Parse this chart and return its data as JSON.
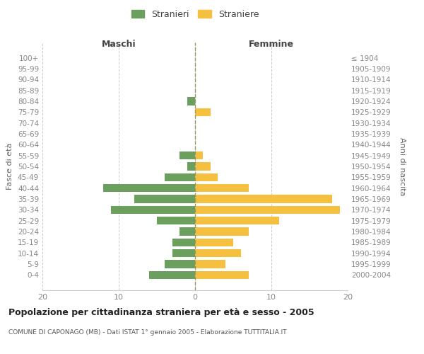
{
  "age_groups": [
    "100+",
    "95-99",
    "90-94",
    "85-89",
    "80-84",
    "75-79",
    "70-74",
    "65-69",
    "60-64",
    "55-59",
    "50-54",
    "45-49",
    "40-44",
    "35-39",
    "30-34",
    "25-29",
    "20-24",
    "15-19",
    "10-14",
    "5-9",
    "0-4"
  ],
  "birth_years": [
    "≤ 1904",
    "1905-1909",
    "1910-1914",
    "1915-1919",
    "1920-1924",
    "1925-1929",
    "1930-1934",
    "1935-1939",
    "1940-1944",
    "1945-1949",
    "1950-1954",
    "1955-1959",
    "1960-1964",
    "1965-1969",
    "1970-1974",
    "1975-1979",
    "1980-1984",
    "1985-1989",
    "1990-1994",
    "1995-1999",
    "2000-2004"
  ],
  "maschi": [
    0,
    0,
    0,
    0,
    1,
    0,
    0,
    0,
    0,
    2,
    1,
    4,
    12,
    8,
    11,
    5,
    2,
    3,
    3,
    4,
    6
  ],
  "femmine": [
    0,
    0,
    0,
    0,
    0,
    2,
    0,
    0,
    0,
    1,
    2,
    3,
    7,
    18,
    19,
    11,
    7,
    5,
    6,
    4,
    7
  ],
  "male_color": "#6a9f5e",
  "female_color": "#f5c040",
  "bar_height": 0.75,
  "xlim": 20,
  "title": "Popolazione per cittadinanza straniera per età e sesso - 2005",
  "subtitle": "COMUNE DI CAPONAGO (MB) - Dati ISTAT 1° gennaio 2005 - Elaborazione TUTTITALIA.IT",
  "ylabel_left": "Fasce di età",
  "ylabel_right": "Anni di nascita",
  "legend_male": "Stranieri",
  "legend_female": "Straniere",
  "maschi_label": "Maschi",
  "femmine_label": "Femmine",
  "background_color": "#ffffff",
  "grid_color": "#cccccc"
}
